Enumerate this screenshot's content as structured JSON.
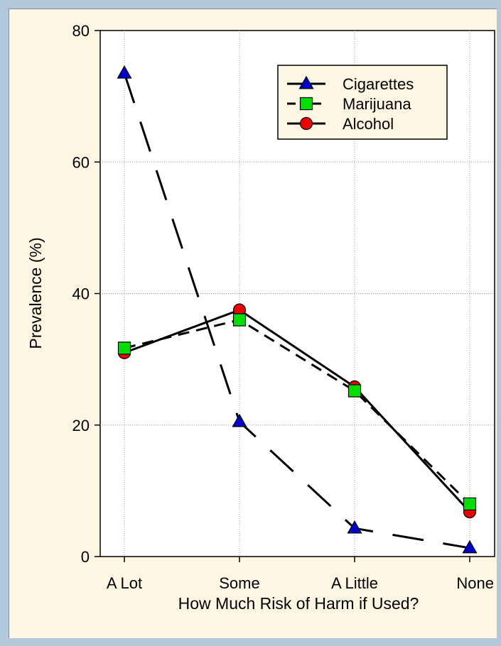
{
  "colors": {
    "background": "#b4c8dc",
    "panel": "#fdf6e2",
    "plot_area": "#ffffff",
    "cigarettes": "#0000cc",
    "marijuana": "#00e000",
    "alcohol": "#ee0000"
  },
  "chart_data": {
    "type": "line",
    "title": "",
    "xlabel": "How Much Risk of Harm if Used?",
    "ylabel": "Prevalence (%)",
    "categories": [
      "A Lot",
      "Some",
      "A Little",
      "None"
    ],
    "ylim": [
      0,
      80
    ],
    "yticks": [
      "0",
      "20",
      "40",
      "60",
      "80"
    ],
    "grid": true,
    "legend": "top-right",
    "series": [
      {
        "name": "Cigarettes",
        "marker": "triangle",
        "line": "long-dash",
        "values": [
          73.5,
          20.5,
          4.3,
          1.3
        ]
      },
      {
        "name": "Marijuana",
        "marker": "square",
        "line": "dash",
        "values": [
          31.7,
          36.0,
          25.2,
          8.0
        ]
      },
      {
        "name": "Alcohol",
        "marker": "circle",
        "line": "solid",
        "values": [
          31.0,
          37.5,
          25.8,
          6.8
        ]
      }
    ]
  }
}
